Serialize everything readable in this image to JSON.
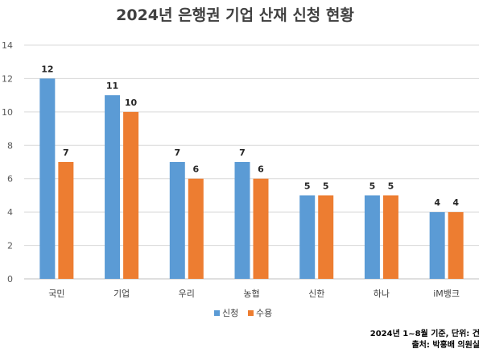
{
  "chart_data": {
    "type": "bar",
    "title": "2024년 은행권 기업 산재 신청 현황",
    "categories": [
      "국민",
      "기업",
      "우리",
      "농협",
      "신한",
      "하나",
      "iM뱅크"
    ],
    "series": [
      {
        "name": "신청",
        "values": [
          12,
          11,
          7,
          7,
          5,
          5,
          4
        ],
        "color": "#5B9BD5"
      },
      {
        "name": "수용",
        "values": [
          7,
          10,
          6,
          6,
          5,
          5,
          4
        ],
        "color": "#ED7D31"
      }
    ],
    "ylim": [
      0,
      14
    ],
    "yticks": [
      0,
      2,
      4,
      6,
      8,
      10,
      12,
      14
    ],
    "grid": true,
    "legend": "bottom"
  },
  "notes": {
    "basis": "2024년 1~8월 기준, 단위: 건",
    "source": "출처: 박홍배 의원실"
  }
}
